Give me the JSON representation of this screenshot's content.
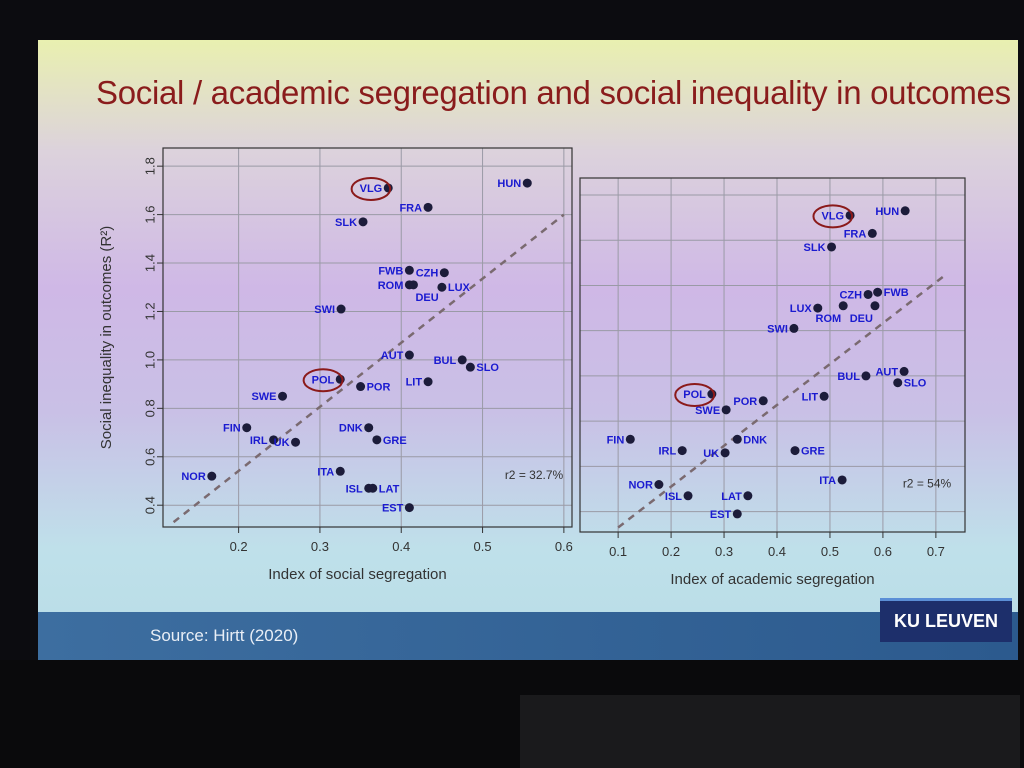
{
  "slide": {
    "title": "Social / academic segregation and social inequality in outcomes",
    "source": "Source: Hirtt (2020)",
    "logo": "KU LEUVEN"
  },
  "colors": {
    "title": "#8a1c1c",
    "point": "#1c1c3a",
    "label": "#1a1ad0",
    "highlight": "#8b1a1a",
    "fit": "#7a6a70"
  },
  "chart_data": [
    {
      "type": "scatter",
      "title": "",
      "xlabel": "Index of social segregation",
      "ylabel": "Social inequality in outcomes (R²)",
      "xlim": [
        0.107,
        0.61
      ],
      "ylim": [
        0.31,
        1.875
      ],
      "xticks": [
        0.2,
        0.3,
        0.4,
        0.5,
        0.6
      ],
      "yticks": [
        0.4,
        0.6,
        0.8,
        1.0,
        1.2,
        1.4,
        1.6,
        1.8
      ],
      "grid": true,
      "annotation": "r2 = 32.7%",
      "highlighted": [
        "VLG",
        "POL"
      ],
      "fit_line": [
        [
          0.12,
          0.33
        ],
        [
          0.6,
          1.6
        ]
      ],
      "points": [
        {
          "label": "HUN",
          "x": 0.555,
          "y": 1.73
        },
        {
          "label": "VLG",
          "x": 0.384,
          "y": 1.71
        },
        {
          "label": "FRA",
          "x": 0.433,
          "y": 1.63
        },
        {
          "label": "SLK",
          "x": 0.353,
          "y": 1.57
        },
        {
          "label": "FWB",
          "x": 0.41,
          "y": 1.37
        },
        {
          "label": "CZH",
          "x": 0.453,
          "y": 1.36
        },
        {
          "label": "ROM",
          "x": 0.41,
          "y": 1.31
        },
        {
          "label": "DEU",
          "x": 0.415,
          "y": 1.31
        },
        {
          "label": "LUX",
          "x": 0.45,
          "y": 1.3
        },
        {
          "label": "SWI",
          "x": 0.326,
          "y": 1.21
        },
        {
          "label": "AUT",
          "x": 0.41,
          "y": 1.02
        },
        {
          "label": "BUL",
          "x": 0.475,
          "y": 1.0
        },
        {
          "label": "SLO",
          "x": 0.485,
          "y": 0.97
        },
        {
          "label": "LIT",
          "x": 0.433,
          "y": 0.91
        },
        {
          "label": "POL",
          "x": 0.325,
          "y": 0.92
        },
        {
          "label": "POR",
          "x": 0.35,
          "y": 0.89
        },
        {
          "label": "SWE",
          "x": 0.254,
          "y": 0.85
        },
        {
          "label": "FIN",
          "x": 0.21,
          "y": 0.72
        },
        {
          "label": "IRL",
          "x": 0.243,
          "y": 0.67
        },
        {
          "label": "UK",
          "x": 0.27,
          "y": 0.66
        },
        {
          "label": "DNK",
          "x": 0.36,
          "y": 0.72
        },
        {
          "label": "GRE",
          "x": 0.37,
          "y": 0.67
        },
        {
          "label": "NOR",
          "x": 0.167,
          "y": 0.52
        },
        {
          "label": "ITA",
          "x": 0.325,
          "y": 0.54
        },
        {
          "label": "ISL",
          "x": 0.36,
          "y": 0.47
        },
        {
          "label": "LAT",
          "x": 0.365,
          "y": 0.47
        },
        {
          "label": "EST",
          "x": 0.41,
          "y": 0.39
        }
      ]
    },
    {
      "type": "scatter",
      "title": "",
      "xlabel": "Index of academic segregation",
      "ylabel": "",
      "xlim": [
        0.028,
        0.755
      ],
      "ylim": [
        0.31,
        1.875
      ],
      "xticks": [
        0.1,
        0.2,
        0.3,
        0.4,
        0.5,
        0.6,
        0.7
      ],
      "yticks": [
        0.4,
        0.6,
        0.8,
        1.0,
        1.2,
        1.4,
        1.6,
        1.8
      ],
      "grid": true,
      "annotation": "r2 = 54%",
      "highlighted": [
        "VLG",
        "POL"
      ],
      "fit_line": [
        [
          0.1,
          0.33
        ],
        [
          0.72,
          1.45
        ]
      ],
      "points": [
        {
          "label": "HUN",
          "x": 0.642,
          "y": 1.73
        },
        {
          "label": "VLG",
          "x": 0.538,
          "y": 1.71
        },
        {
          "label": "FRA",
          "x": 0.58,
          "y": 1.63
        },
        {
          "label": "SLK",
          "x": 0.503,
          "y": 1.57
        },
        {
          "label": "CZH",
          "x": 0.572,
          "y": 1.36
        },
        {
          "label": "FWB",
          "x": 0.59,
          "y": 1.37
        },
        {
          "label": "LUX",
          "x": 0.477,
          "y": 1.3
        },
        {
          "label": "ROM",
          "x": 0.525,
          "y": 1.31
        },
        {
          "label": "DEU",
          "x": 0.585,
          "y": 1.31
        },
        {
          "label": "SWI",
          "x": 0.432,
          "y": 1.21
        },
        {
          "label": "BUL",
          "x": 0.568,
          "y": 1.0
        },
        {
          "label": "AUT",
          "x": 0.64,
          "y": 1.02
        },
        {
          "label": "SLO",
          "x": 0.628,
          "y": 0.97
        },
        {
          "label": "LIT",
          "x": 0.489,
          "y": 0.91
        },
        {
          "label": "POL",
          "x": 0.277,
          "y": 0.92
        },
        {
          "label": "POR",
          "x": 0.374,
          "y": 0.89
        },
        {
          "label": "SWE",
          "x": 0.304,
          "y": 0.85
        },
        {
          "label": "FIN",
          "x": 0.123,
          "y": 0.72
        },
        {
          "label": "IRL",
          "x": 0.221,
          "y": 0.67
        },
        {
          "label": "UK",
          "x": 0.302,
          "y": 0.66
        },
        {
          "label": "DNK",
          "x": 0.325,
          "y": 0.72
        },
        {
          "label": "GRE",
          "x": 0.434,
          "y": 0.67
        },
        {
          "label": "NOR",
          "x": 0.177,
          "y": 0.52
        },
        {
          "label": "ISL",
          "x": 0.232,
          "y": 0.47
        },
        {
          "label": "LAT",
          "x": 0.345,
          "y": 0.47
        },
        {
          "label": "EST",
          "x": 0.325,
          "y": 0.39
        },
        {
          "label": "ITA",
          "x": 0.523,
          "y": 0.54
        }
      ]
    }
  ]
}
